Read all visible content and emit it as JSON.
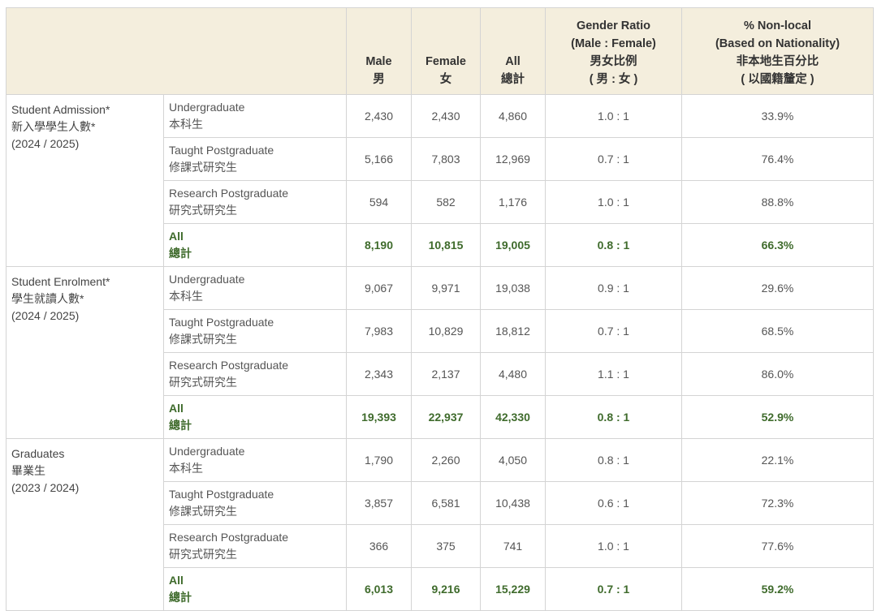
{
  "headers": {
    "male": [
      "Male",
      "男"
    ],
    "female": [
      "Female",
      "女"
    ],
    "all": [
      "All",
      "總計"
    ],
    "ratio": [
      "Gender Ratio",
      "(Male : Female)",
      "男女比例",
      "( 男 : 女 )"
    ],
    "nonlocal": [
      "% Non-local",
      "(Based on Nationality)",
      "非本地生百分比",
      "( 以國籍釐定 )"
    ]
  },
  "sections": [
    {
      "category": [
        "Student Admission*",
        "新入學學生人數*",
        "(2024 / 2025)"
      ],
      "rows": [
        {
          "sub": [
            "Undergraduate",
            "本科生"
          ],
          "male": "2,430",
          "female": "2,430",
          "all": "4,860",
          "ratio": "1.0 : 1",
          "nonlocal": "33.9%"
        },
        {
          "sub": [
            "Taught Postgraduate",
            "修課式研究生"
          ],
          "male": "5,166",
          "female": "7,803",
          "all": "12,969",
          "ratio": "0.7 : 1",
          "nonlocal": "76.4%"
        },
        {
          "sub": [
            "Research Postgraduate",
            "研究式研究生"
          ],
          "male": "594",
          "female": "582",
          "all": "1,176",
          "ratio": "1.0 : 1",
          "nonlocal": "88.8%"
        },
        {
          "sub": [
            "All",
            "總計"
          ],
          "male": "8,190",
          "female": "10,815",
          "all": "19,005",
          "ratio": "0.8 : 1",
          "nonlocal": "66.3%"
        }
      ]
    },
    {
      "category": [
        "Student Enrolment*",
        "學生就讀人數*",
        "(2024 / 2025)"
      ],
      "rows": [
        {
          "sub": [
            "Undergraduate",
            "本科生"
          ],
          "male": "9,067",
          "female": "9,971",
          "all": "19,038",
          "ratio": "0.9 : 1",
          "nonlocal": "29.6%"
        },
        {
          "sub": [
            "Taught Postgraduate",
            "修課式研究生"
          ],
          "male": "7,983",
          "female": "10,829",
          "all": "18,812",
          "ratio": "0.7 : 1",
          "nonlocal": "68.5%"
        },
        {
          "sub": [
            "Research Postgraduate",
            "研究式研究生"
          ],
          "male": "2,343",
          "female": "2,137",
          "all": "4,480",
          "ratio": "1.1 : 1",
          "nonlocal": "86.0%"
        },
        {
          "sub": [
            "All",
            "總計"
          ],
          "male": "19,393",
          "female": "22,937",
          "all": "42,330",
          "ratio": "0.8 : 1",
          "nonlocal": "52.9%"
        }
      ]
    },
    {
      "category": [
        "Graduates",
        "畢業生",
        "(2023 / 2024)"
      ],
      "rows": [
        {
          "sub": [
            "Undergraduate",
            "本科生"
          ],
          "male": "1,790",
          "female": "2,260",
          "all": "4,050",
          "ratio": "0.8 : 1",
          "nonlocal": "22.1%"
        },
        {
          "sub": [
            "Taught Postgraduate",
            "修課式研究生"
          ],
          "male": "3,857",
          "female": "6,581",
          "all": "10,438",
          "ratio": "0.6 : 1",
          "nonlocal": "72.3%"
        },
        {
          "sub": [
            "Research Postgraduate",
            "研究式研究生"
          ],
          "male": "366",
          "female": "375",
          "all": "741",
          "ratio": "1.0 : 1",
          "nonlocal": "77.6%"
        },
        {
          "sub": [
            "All",
            "總計"
          ],
          "male": "6,013",
          "female": "9,216",
          "all": "15,229",
          "ratio": "0.7 : 1",
          "nonlocal": "59.2%"
        }
      ]
    }
  ]
}
